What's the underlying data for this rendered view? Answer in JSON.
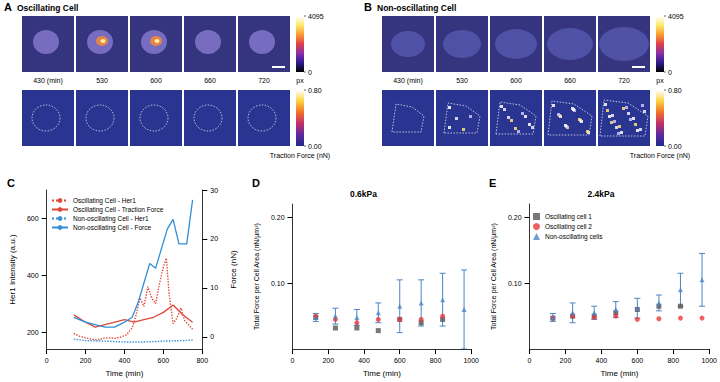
{
  "image_panels": [
    {
      "panel": "A",
      "title": "Oscillating Cell",
      "time_labels": [
        "430 (min)",
        "530",
        "600",
        "660",
        "720"
      ],
      "intensity_colorbar": {
        "range": [
          0,
          4095
        ],
        "ticks": [
          4095,
          0
        ],
        "label": "px"
      },
      "force_colorbar": {
        "range": [
          0,
          0.8
        ],
        "ticks": [
          {
            "value": 0.8,
            "label": "0.80"
          },
          {
            "value": 0,
            "label": "0.00"
          }
        ],
        "label": "Traction Force (nN)"
      }
    },
    {
      "panel": "B",
      "title": "Non-oscillating Cell",
      "time_labels": [
        "430 (min)",
        "530",
        "600",
        "660",
        "720"
      ],
      "intensity_colorbar": {
        "range": [
          0,
          4095
        ],
        "ticks": [
          4095,
          0
        ],
        "label": "px"
      },
      "force_colorbar": {
        "range": [
          0,
          0.8
        ],
        "ticks": [
          {
            "value": 0.8,
            "label": "0.80"
          },
          {
            "value": 0,
            "label": "0.00"
          }
        ],
        "label": "Traction Force (nN)"
      }
    }
  ],
  "chart_data": [
    {
      "panel": "C",
      "type": "line",
      "x_label": "Time (min)",
      "y_label": "Her1 Intensity (a.u.)",
      "y2_label": "Force (nN)",
      "xlim": [
        0,
        800
      ],
      "xticks": [
        0,
        200,
        400,
        600,
        800
      ],
      "ylim": [
        140,
        700
      ],
      "yticks": [
        200,
        400,
        600
      ],
      "y2lim": [
        -2.5,
        30
      ],
      "y2ticks": [
        0,
        10,
        20,
        30
      ],
      "legend": "upper left",
      "series": [
        {
          "name": "Oscillating Cell - Her1",
          "color": "#e0473a",
          "line_style": "dotted",
          "axis": "y",
          "x": [
            140,
            170,
            200,
            230,
            260,
            290,
            320,
            350,
            380,
            410,
            440,
            460,
            480,
            500,
            520,
            540,
            560,
            580,
            600,
            615,
            630,
            650,
            670,
            690,
            710,
            730,
            750
          ],
          "values": [
            195,
            185,
            180,
            175,
            172,
            178,
            180,
            178,
            182,
            190,
            215,
            260,
            320,
            290,
            360,
            320,
            300,
            370,
            430,
            460,
            330,
            230,
            250,
            285,
            240,
            225,
            210
          ]
        },
        {
          "name": "Oscillating Cell - Traction Force",
          "color": "#e0473a",
          "line_style": "solid",
          "axis": "y2",
          "x": [
            140,
            200,
            250,
            300,
            350,
            400,
            450,
            500,
            550,
            600,
            650,
            700,
            750
          ],
          "values": [
            4.5,
            3,
            2,
            2.5,
            3,
            3.5,
            3,
            3.5,
            4,
            5,
            6.5,
            4.5,
            3
          ]
        },
        {
          "name": "Non-oscillating Cell - Her1",
          "color": "#2f8fd8",
          "line_style": "dotted",
          "axis": "y",
          "x": [
            140,
            200,
            300,
            400,
            500,
            600,
            700,
            750
          ],
          "values": [
            175,
            170,
            168,
            165,
            165,
            168,
            170,
            172
          ]
        },
        {
          "name": "Non-oscillating Cell - Force",
          "color": "#2f8fd8",
          "line_style": "solid",
          "axis": "y2",
          "x": [
            140,
            200,
            250,
            300,
            350,
            400,
            440,
            470,
            500,
            530,
            560,
            590,
            620,
            650,
            680,
            720,
            750
          ],
          "values": [
            4,
            3,
            2.5,
            2,
            2,
            3,
            4,
            7,
            11,
            15,
            14,
            18,
            22,
            24,
            19,
            19,
            28
          ]
        }
      ]
    },
    {
      "panel": "D",
      "type": "scatter",
      "title": "0.6kPa",
      "x_label": "Time (min)",
      "y_label": "Total Force per Cell Area (nN/µm²)",
      "xlim": [
        0,
        1000
      ],
      "xticks": [
        0,
        200,
        400,
        600,
        800,
        1000
      ],
      "ylim": [
        0,
        0.22
      ],
      "yticks": [
        {
          "value": 0.1,
          "label": "0.10"
        },
        {
          "value": 0.2,
          "label": "0.20"
        }
      ],
      "series": [
        {
          "name": "Oscillating cell 1",
          "color": "#555555",
          "marker": "square",
          "x": [
            130,
            240,
            360,
            480,
            600,
            720,
            840
          ],
          "values": [
            0.048,
            0.032,
            0.032,
            0.028,
            0.045,
            0.04,
            0.045
          ]
        },
        {
          "name": "Oscillating cell 2",
          "color": "#e8383d",
          "marker": "circle",
          "x": [
            130,
            240,
            360,
            480,
            600,
            720,
            840
          ],
          "values": [
            0.05,
            0.045,
            0.04,
            0.045,
            0.045,
            0.045,
            0.05
          ]
        },
        {
          "name": "Non-oscillating cells",
          "color": "#4a86c5",
          "marker": "triangle",
          "x": [
            130,
            240,
            360,
            480,
            600,
            720,
            840,
            960
          ],
          "values": [
            0.048,
            0.05,
            0.048,
            0.055,
            0.065,
            0.07,
            0.075,
            0.06
          ],
          "error": [
            0.006,
            0.012,
            0.012,
            0.015,
            0.04,
            0.035,
            0.04,
            0.06
          ]
        }
      ]
    },
    {
      "panel": "E",
      "type": "scatter",
      "title": "2.4kPa",
      "x_label": "Time (min)",
      "y_label": "Total Force per Cell Area (nN/µm²)",
      "xlim": [
        0,
        1000
      ],
      "xticks": [
        0,
        200,
        400,
        600,
        800,
        1000
      ],
      "ylim": [
        0,
        0.22
      ],
      "yticks": [
        {
          "value": 0.1,
          "label": "0.10"
        },
        {
          "value": 0.2,
          "label": "0.20"
        }
      ],
      "legend": "upper left",
      "series": [
        {
          "name": "Oscillating cell 1",
          "color": "#555555",
          "marker": "square",
          "x": [
            130,
            240,
            360,
            480,
            600,
            720,
            840
          ],
          "values": [
            0.047,
            0.05,
            0.05,
            0.055,
            0.06,
            0.065,
            0.065
          ]
        },
        {
          "name": "Oscillating cell 2",
          "color": "#e8383d",
          "marker": "circle",
          "x": [
            130,
            240,
            360,
            480,
            600,
            720,
            840,
            960
          ],
          "values": [
            0.047,
            0.05,
            0.048,
            0.05,
            0.045,
            0.046,
            0.047,
            0.047
          ]
        },
        {
          "name": "Non-oscillating cells",
          "color": "#4a86c5",
          "marker": "triangle",
          "x": [
            130,
            240,
            360,
            480,
            600,
            720,
            840,
            960
          ],
          "values": [
            0.048,
            0.055,
            0.055,
            0.06,
            0.062,
            0.07,
            0.09,
            0.105
          ],
          "error": [
            0.006,
            0.015,
            0.01,
            0.012,
            0.015,
            0.012,
            0.025,
            0.04
          ]
        }
      ]
    }
  ]
}
